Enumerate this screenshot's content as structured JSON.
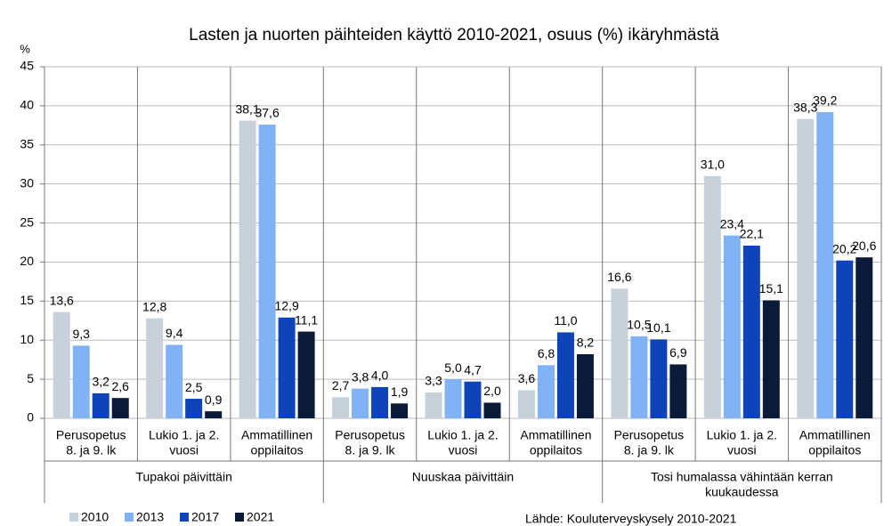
{
  "chart_data": {
    "type": "bar",
    "title": "Lasten ja nuorten päihteiden käyttö 2010-2021, osuus (%) ikäryhmästä",
    "y_label": "%",
    "categories": [
      [
        "Perusopetus",
        "8. ja 9. lk"
      ],
      [
        "Lukio 1. ja 2.",
        "vuosi"
      ],
      [
        "Ammatillinen",
        "oppilaitos"
      ],
      [
        "Perusopetus",
        "8. ja 9. lk"
      ],
      [
        "Lukio 1. ja 2.",
        "vuosi"
      ],
      [
        "Ammatillinen",
        "oppilaitos"
      ],
      [
        "Perusopetus",
        "8. ja 9. lk"
      ],
      [
        "Lukio 1. ja 2.",
        "vuosi"
      ],
      [
        "Ammatillinen",
        "oppilaitos"
      ]
    ],
    "groups": [
      [
        "Tupakoi päivittäin"
      ],
      [
        "Nuuskaa päivittäin"
      ],
      [
        "Tosi humalassa vähintään kerran",
        "kuukaudessa"
      ]
    ],
    "series": [
      {
        "name": "2010",
        "color": "#c8d1da",
        "values": [
          13.6,
          12.8,
          38.1,
          2.7,
          3.3,
          3.6,
          16.6,
          31.0,
          38.3
        ],
        "value_labels": [
          "13,6",
          "12,8",
          "38,1",
          "2,7",
          "3,3",
          "3,6",
          "16,6",
          "31,0",
          "38,3"
        ]
      },
      {
        "name": "2013",
        "color": "#80b2f4",
        "values": [
          9.3,
          9.4,
          37.6,
          3.8,
          5.0,
          6.8,
          10.5,
          23.4,
          39.2
        ],
        "value_labels": [
          "9,3",
          "9,4",
          "37,6",
          "3,8",
          "5,0",
          "6,8",
          "10,5",
          "23,4",
          "39,2"
        ]
      },
      {
        "name": "2017",
        "color": "#0f44b8",
        "values": [
          3.2,
          2.5,
          12.9,
          4.0,
          4.7,
          11.0,
          10.1,
          22.1,
          20.2
        ],
        "value_labels": [
          "3,2",
          "2,5",
          "12,9",
          "4,0",
          "4,7",
          "11,0",
          "10,1",
          "22,1",
          "20,2"
        ]
      },
      {
        "name": "2021",
        "color": "#0c1a3a",
        "values": [
          2.6,
          0.9,
          11.1,
          1.9,
          2.0,
          8.2,
          6.9,
          15.1,
          20.6
        ],
        "value_labels": [
          "2,6",
          "0,9",
          "11,1",
          "1,9",
          "2,0",
          "8,2",
          "6,9",
          "15,1",
          "20,6"
        ]
      }
    ],
    "ylim": [
      0,
      45
    ],
    "yticks": [
      0,
      5,
      10,
      15,
      20,
      25,
      30,
      35,
      40,
      45
    ],
    "grid": true,
    "legend": "bottom-left",
    "source": "Lähde: Kouluterveyskysely 2010-2021"
  }
}
